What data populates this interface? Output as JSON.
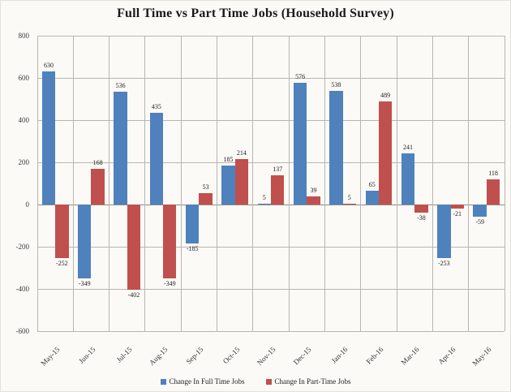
{
  "chart_data": {
    "type": "bar",
    "title": "Full Time vs Part Time Jobs (Household Survey)",
    "categories": [
      "May-15",
      "Jun-15",
      "Jul-15",
      "Aug-15",
      "Sep-15",
      "Oct-15",
      "Nov-15",
      "Dec-15",
      "Jan-16",
      "Feb-16",
      "Mar-16",
      "Apr-16",
      "May-16"
    ],
    "series": [
      {
        "name": "Change In Full Time Jobs",
        "color": "#4f81bd",
        "values": [
          630,
          -349,
          536,
          435,
          -185,
          185,
          5,
          576,
          538,
          65,
          241,
          -253,
          -59
        ]
      },
      {
        "name": "Change In Part-Time Jobs",
        "color": "#c0504d",
        "values": [
          -252,
          168,
          -402,
          -349,
          53,
          214,
          137,
          39,
          5,
          489,
          -38,
          -21,
          118
        ]
      }
    ],
    "ylim": [
      -600,
      800
    ],
    "yticks": [
      800,
      600,
      400,
      200,
      0,
      -200,
      -400,
      -600
    ],
    "grid": true,
    "legend_position": "bottom",
    "legend_swatch": "square"
  }
}
